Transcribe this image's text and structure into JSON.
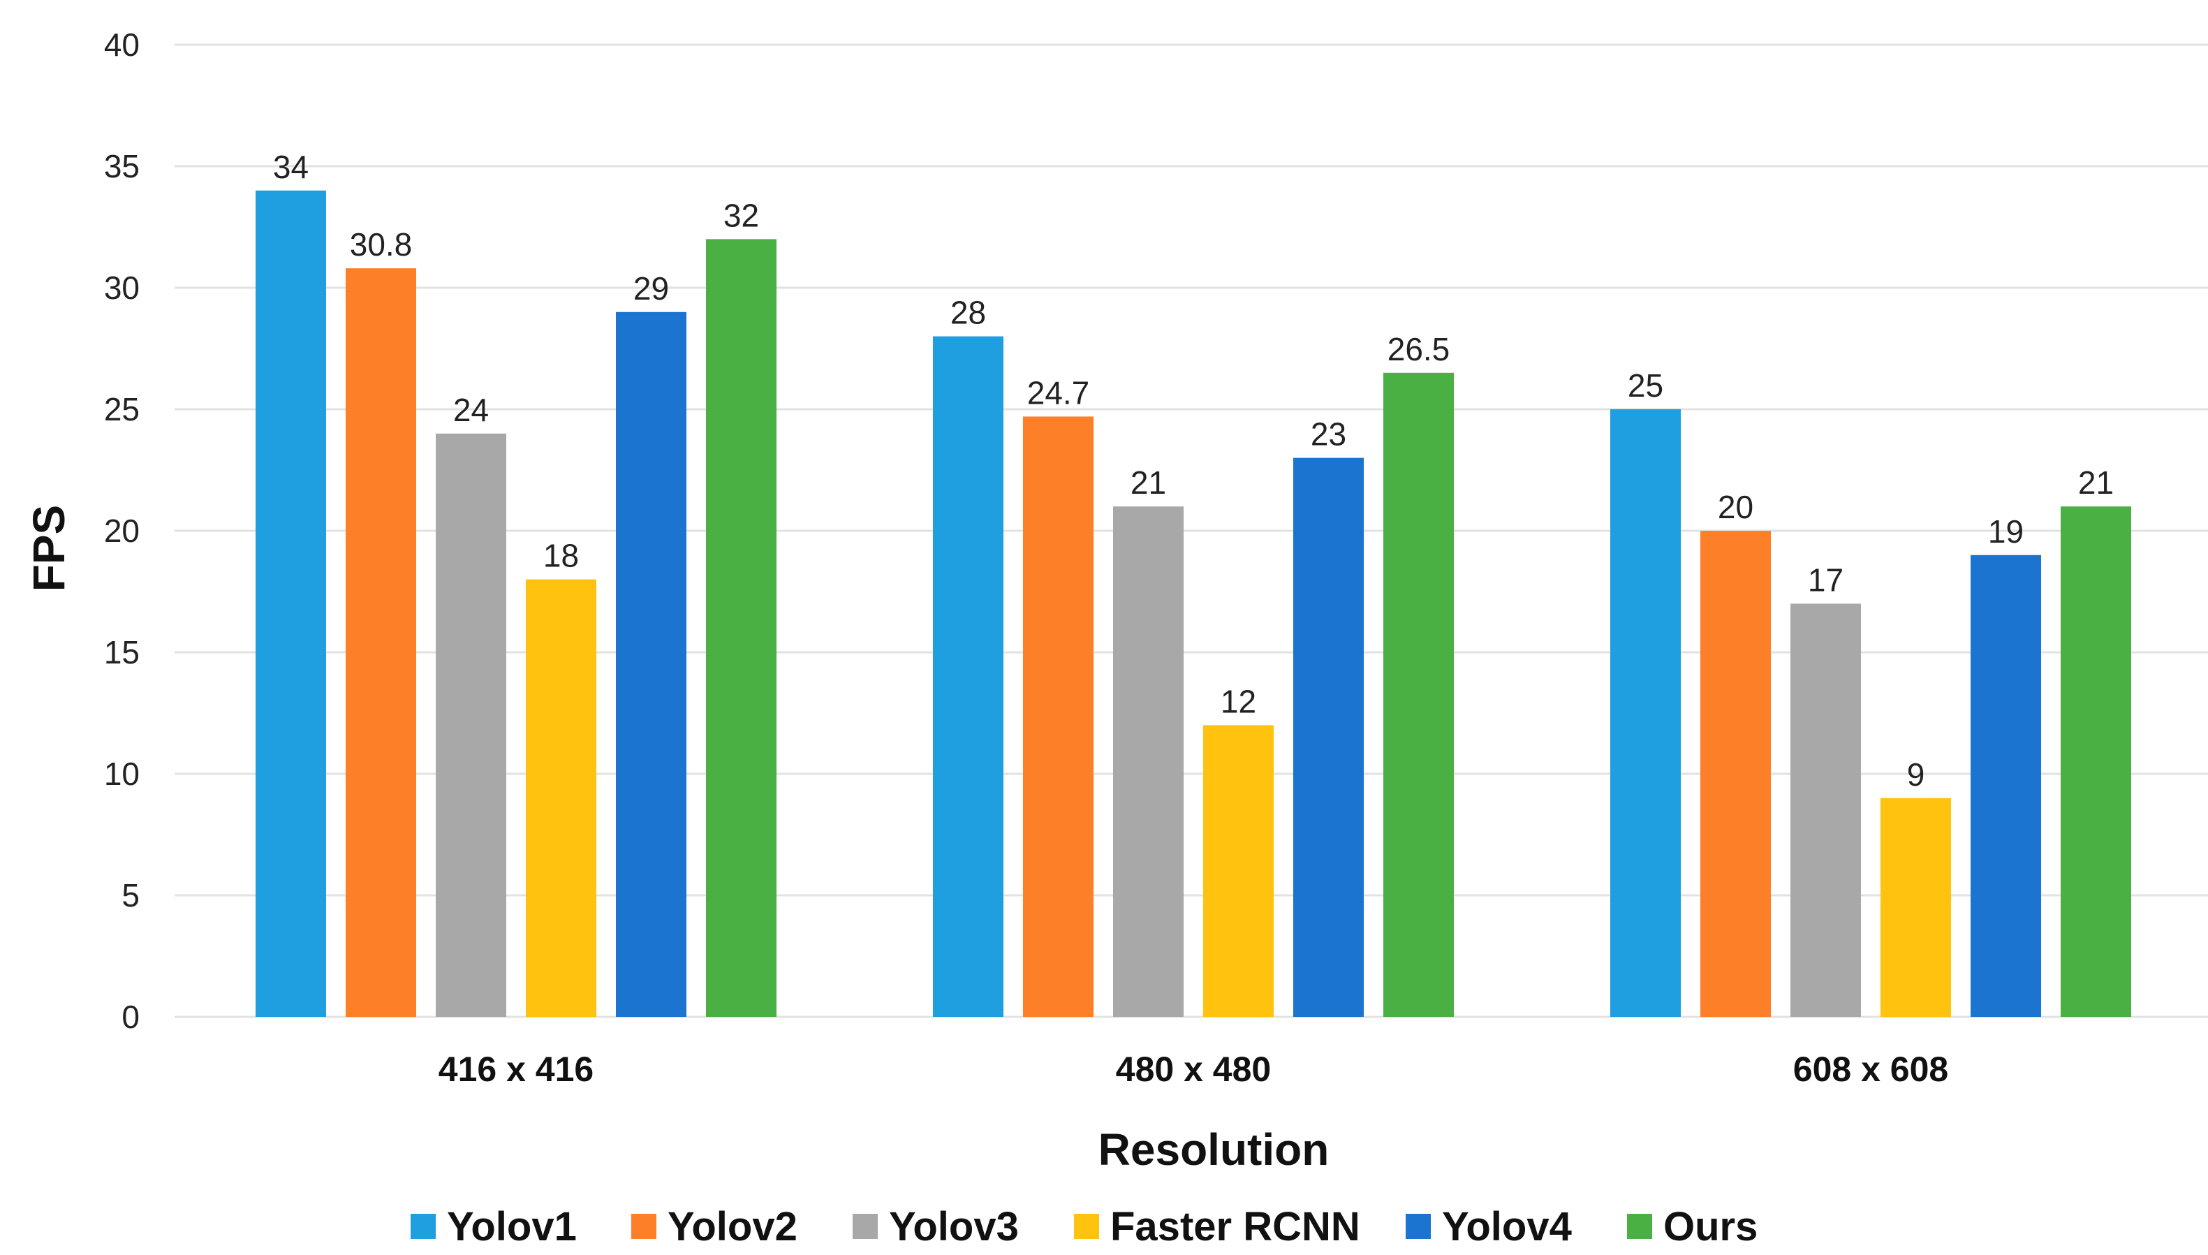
{
  "chart_data": {
    "type": "bar",
    "title": "",
    "xlabel": "Resolution",
    "ylabel": "FPS",
    "ylim": [
      0,
      40
    ],
    "yticks": [
      0,
      5,
      10,
      15,
      20,
      25,
      30,
      35,
      40
    ],
    "grid": true,
    "legend_position": "bottom",
    "categories": [
      "416 x 416",
      "480 x 480",
      "608 x 608"
    ],
    "series": [
      {
        "name": "Yolov1",
        "color": "#1f9fdf",
        "values": [
          34,
          28,
          25
        ],
        "labels": [
          "34",
          "28",
          "25"
        ]
      },
      {
        "name": "Yolov2",
        "color": "#fd7f28",
        "values": [
          30.8,
          24.7,
          20
        ],
        "labels": [
          "30.8",
          "24.7",
          "20"
        ]
      },
      {
        "name": "Yolov3",
        "color": "#a8a8a8",
        "values": [
          24,
          21,
          17
        ],
        "labels": [
          "24",
          "21",
          "17"
        ]
      },
      {
        "name": "Faster RCNN",
        "color": "#ffc20e",
        "values": [
          18,
          12,
          9
        ],
        "labels": [
          "18",
          "12",
          "9"
        ]
      },
      {
        "name": "Yolov4",
        "color": "#1b74cf",
        "values": [
          29,
          23,
          19
        ],
        "labels": [
          "29",
          "23",
          "19"
        ]
      },
      {
        "name": "Ours",
        "color": "#4ab043",
        "values": [
          32,
          26.5,
          21
        ],
        "labels": [
          "32",
          "26.5",
          "21"
        ]
      }
    ]
  }
}
